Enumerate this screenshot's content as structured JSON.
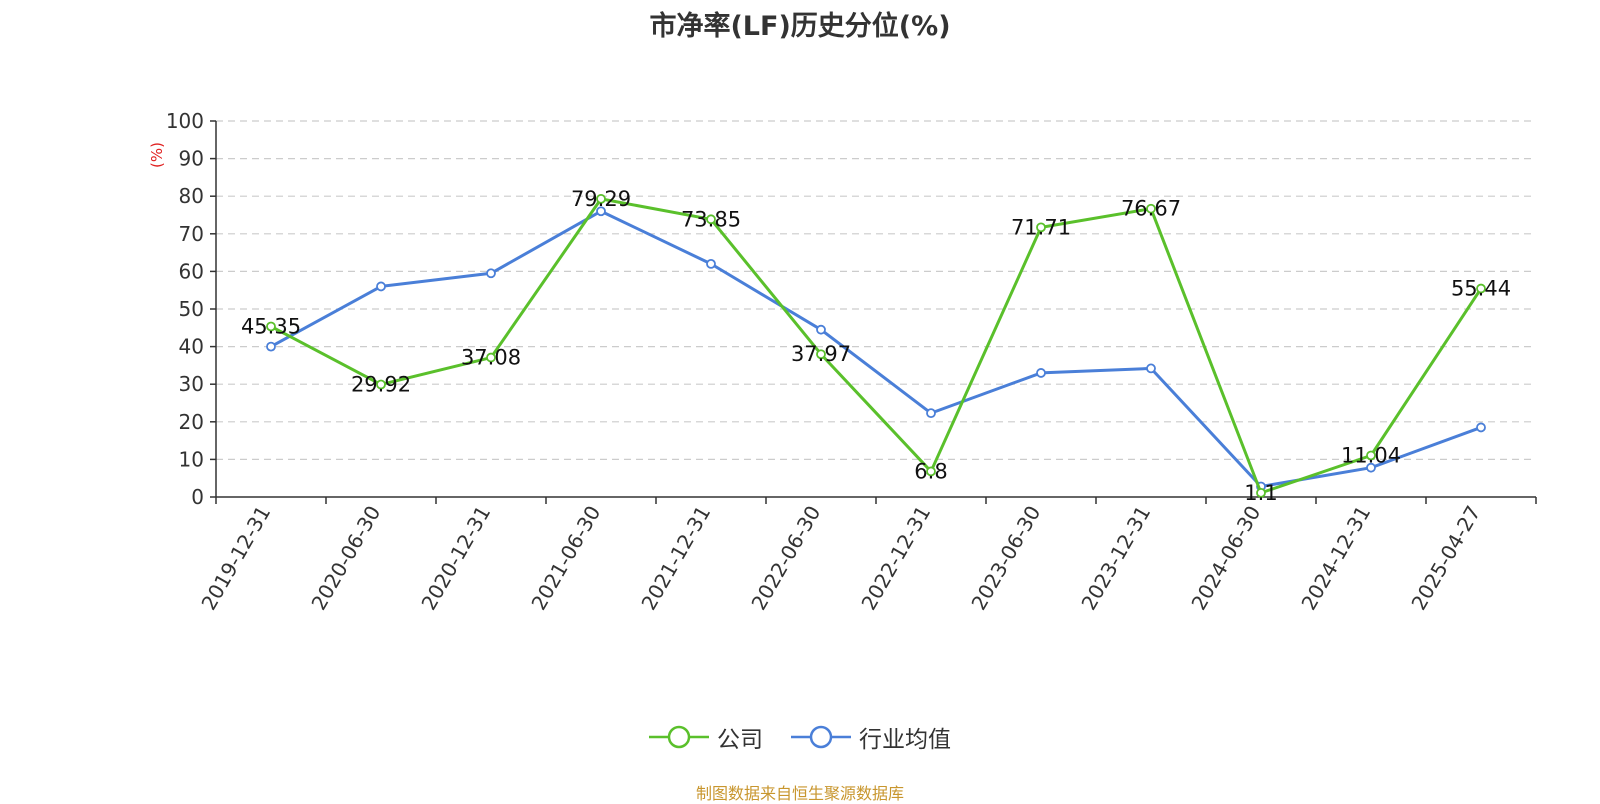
{
  "chart_data": {
    "type": "line",
    "title": "市净率(LF)历史分位(%)",
    "ylabel": "(%)",
    "ylim": [
      0,
      100
    ],
    "yticks": [
      0,
      10,
      20,
      30,
      40,
      50,
      60,
      70,
      80,
      90,
      100
    ],
    "grid": true,
    "legend_placement": "bottom",
    "categories": [
      "2019-12-31",
      "2020-06-30",
      "2020-12-31",
      "2021-06-30",
      "2021-12-31",
      "2022-06-30",
      "2022-12-31",
      "2023-06-30",
      "2023-12-31",
      "2024-06-30",
      "2024-12-31",
      "2025-04-27"
    ],
    "series": [
      {
        "name": "公司",
        "color": "#5ac02b",
        "values": [
          45.35,
          29.92,
          37.08,
          79.29,
          73.85,
          37.97,
          6.8,
          71.71,
          76.67,
          1.1,
          11.04,
          55.44
        ],
        "labels": [
          "45.35",
          "29.92",
          "37.08",
          "79.29",
          "73.85",
          "37.97",
          "6.8",
          "71.71",
          "76.67",
          "1.1",
          "11.04",
          "55.44"
        ]
      },
      {
        "name": "行业均值",
        "color": "#4a7fd8",
        "values": [
          40.0,
          56.0,
          59.5,
          76.0,
          62.0,
          44.5,
          22.3,
          33.0,
          34.2,
          2.8,
          7.8,
          18.5
        ]
      }
    ],
    "source": "制图数据来自恒生聚源数据库"
  }
}
